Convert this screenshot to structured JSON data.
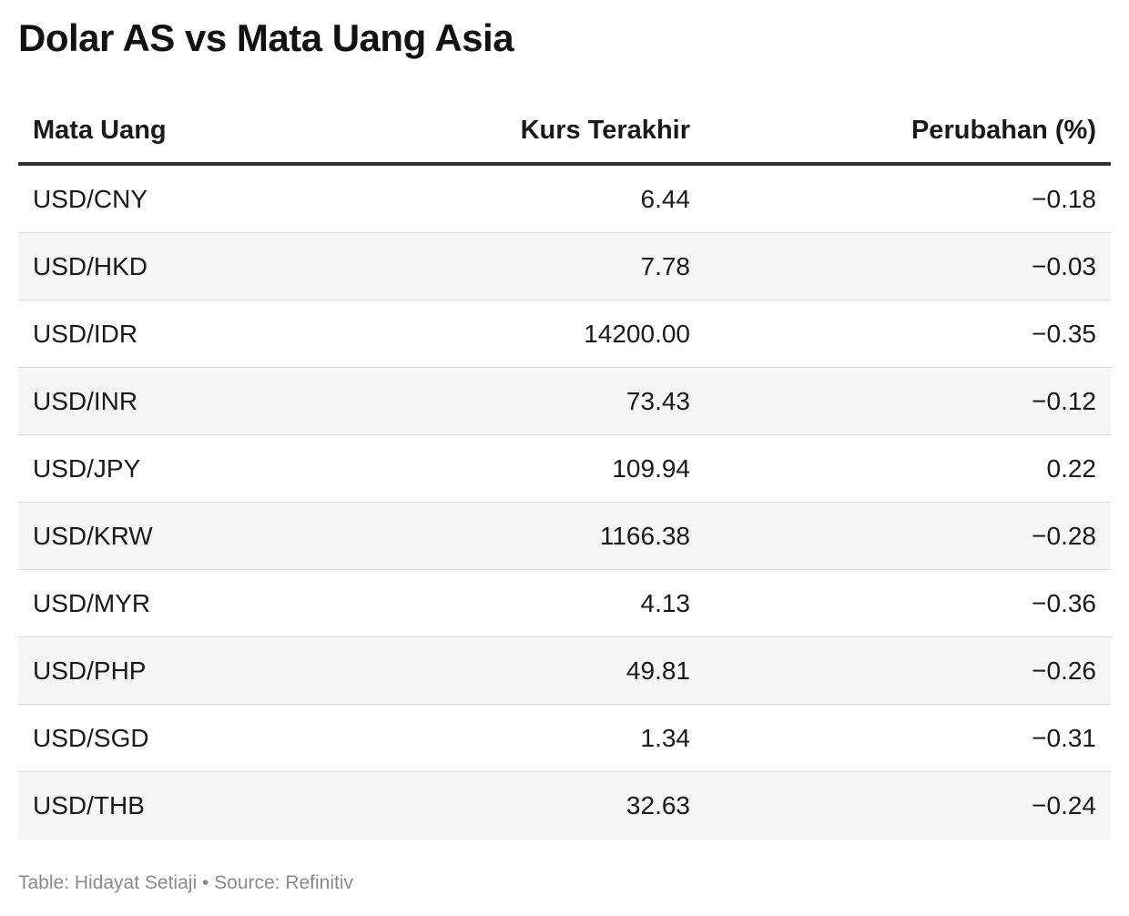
{
  "title": "Dolar AS vs Mata Uang Asia",
  "footer": "Table: Hidayat Setiaji • Source: Refinitiv",
  "chart_data": {
    "type": "table",
    "title": "Dolar AS vs Mata Uang Asia",
    "columns": [
      "Mata Uang",
      "Kurs Terakhir",
      "Perubahan (%)"
    ],
    "rows": [
      [
        "USD/CNY",
        "6.44",
        "−0.18"
      ],
      [
        "USD/HKD",
        "7.78",
        "−0.03"
      ],
      [
        "USD/IDR",
        "14200.00",
        "−0.35"
      ],
      [
        "USD/INR",
        "73.43",
        "−0.12"
      ],
      [
        "USD/JPY",
        "109.94",
        "0.22"
      ],
      [
        "USD/KRW",
        "1166.38",
        "−0.28"
      ],
      [
        "USD/MYR",
        "4.13",
        "−0.36"
      ],
      [
        "USD/PHP",
        "49.81",
        "−0.26"
      ],
      [
        "USD/SGD",
        "1.34",
        "−0.31"
      ],
      [
        "USD/THB",
        "32.63",
        "−0.24"
      ]
    ]
  }
}
